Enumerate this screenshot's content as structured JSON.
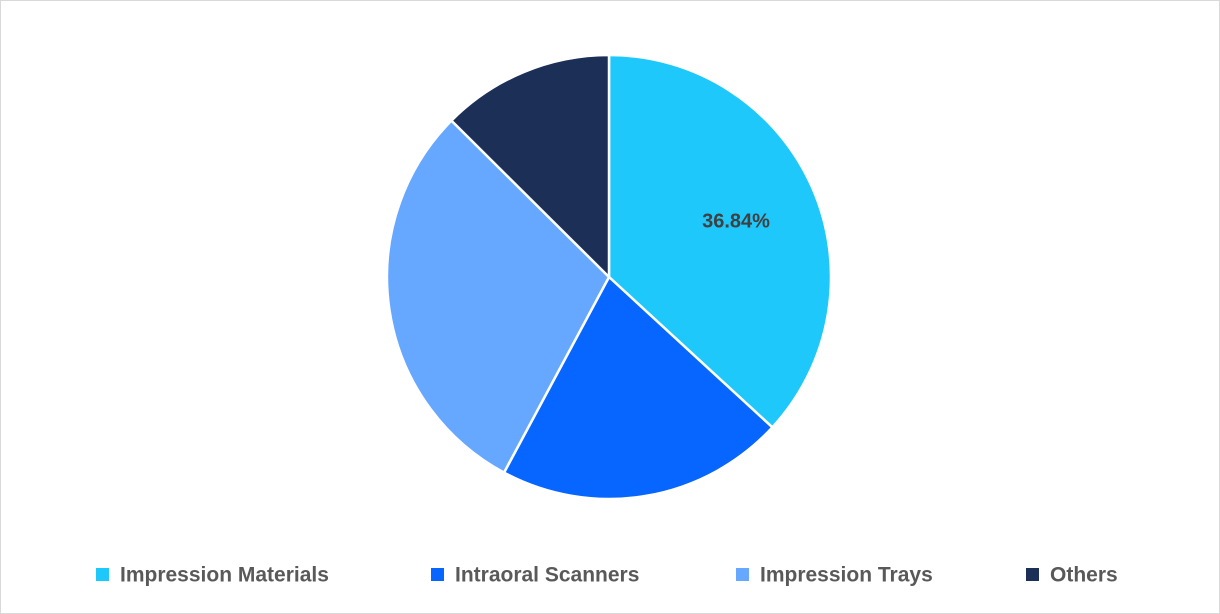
{
  "chart_data": {
    "type": "pie",
    "categories": [
      "Impression Materials",
      "Intraoral Scanners",
      "Impression Trays",
      "Others"
    ],
    "values": [
      36.84,
      21.0,
      29.6,
      12.56
    ],
    "colors": [
      "#1ec8fb",
      "#0766ff",
      "#66a7ff",
      "#1c2f57"
    ],
    "data_labels": [
      "36.84%",
      "",
      "",
      ""
    ],
    "start_angle_deg": 0,
    "direction": "clockwise",
    "legend_position": "bottom"
  }
}
